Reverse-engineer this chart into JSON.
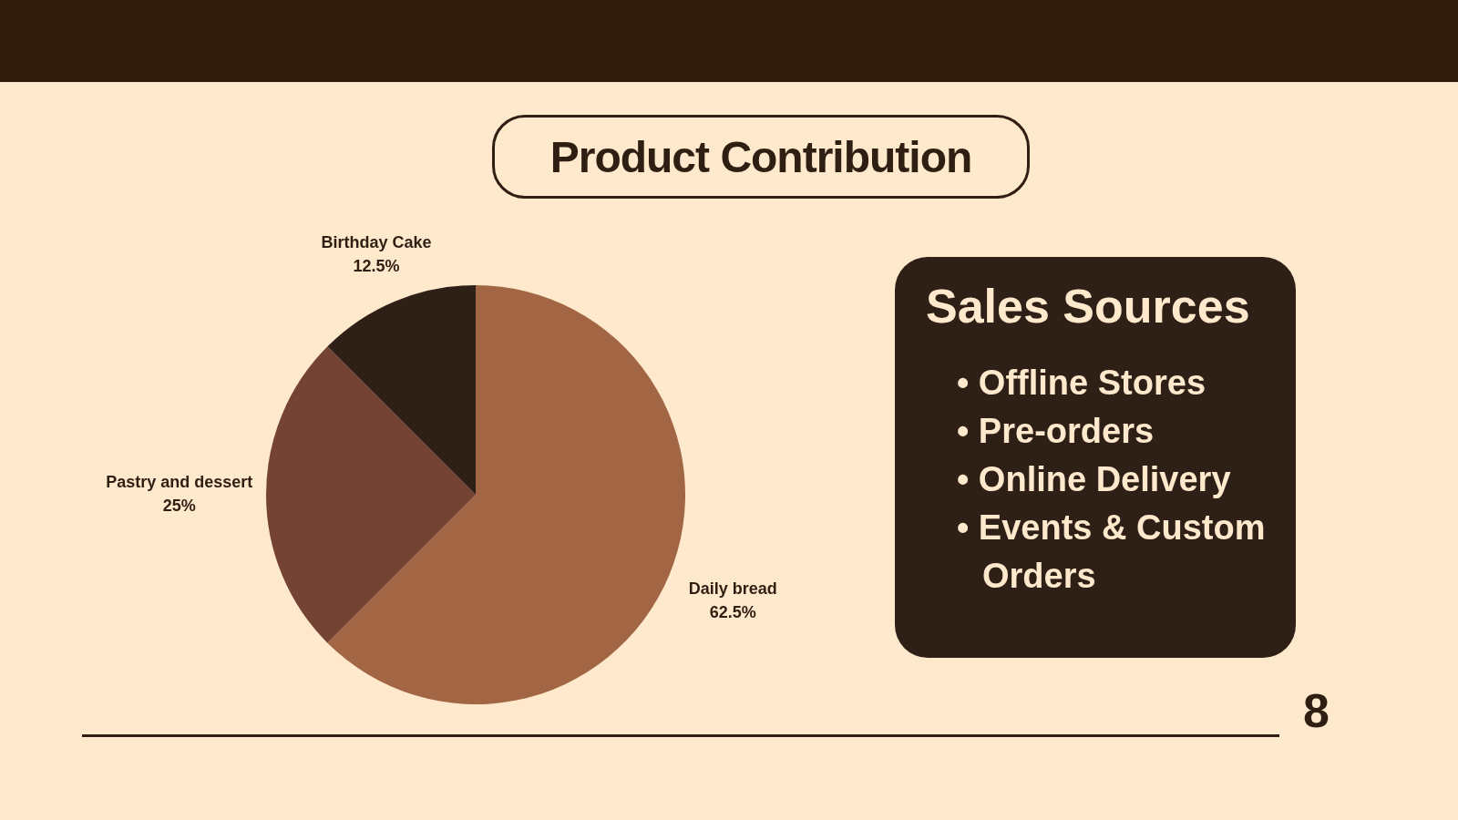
{
  "chart_data": [
    {
      "type": "pie",
      "title": "Product Contribution",
      "categories": [
        "Daily bread",
        "Pastry and dessert",
        "Birthday Cake"
      ],
      "values": [
        62.5,
        25,
        12.5
      ],
      "colors": [
        "#a36644",
        "#744334",
        "#2e1f17"
      ],
      "value_labels": [
        "62.5%",
        "25%",
        "12.5%"
      ],
      "annotations": [
        "8"
      ]
    },
    {
      "type": "other",
      "title": "Sales Sources",
      "annotations": [
        "• Offline Stores",
        "• Pre-orders",
        "• Online Delivery",
        "• Events & Custom Orders"
      ]
    }
  ]
}
